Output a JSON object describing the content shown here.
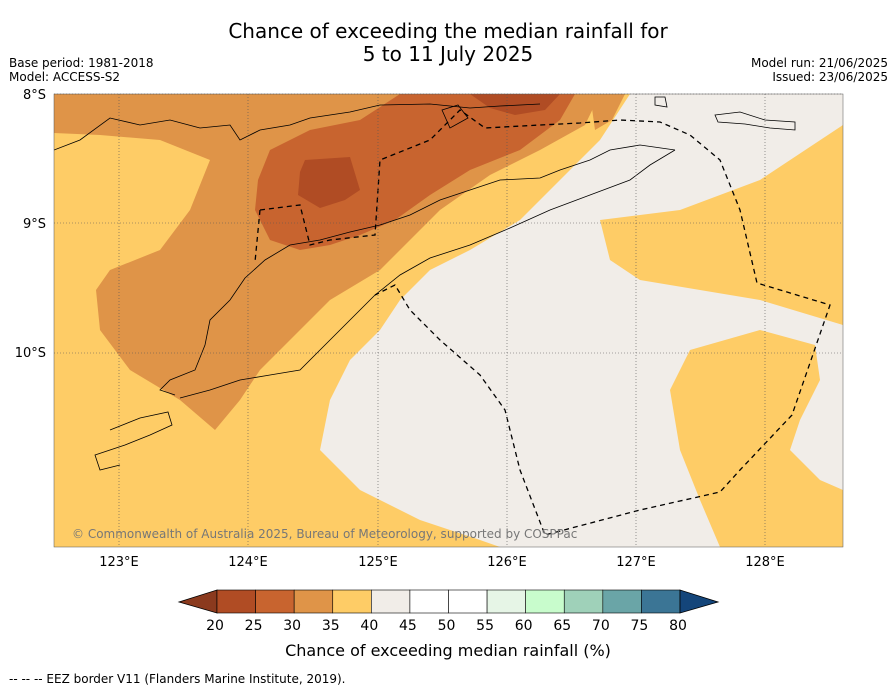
{
  "title": {
    "line1": "Chance of exceeding the median rainfall for",
    "line2": "5 to 11 July 2025"
  },
  "meta_left": {
    "base_period": "Base period: 1981-2018",
    "model": "Model: ACCESS-S2"
  },
  "meta_right": {
    "model_run": "Model run: 21/06/2025",
    "issued": "Issued: 23/06/2025"
  },
  "map": {
    "lat_labels": [
      "8°S",
      "9°S",
      "10°S"
    ],
    "lon_labels": [
      "123°E",
      "124°E",
      "125°E",
      "126°E",
      "127°E",
      "128°E"
    ],
    "copyright": "© Commonwealth of Australia 2025, Bureau of Meteorology, supported by COSPPac"
  },
  "legend": {
    "title": "Chance of exceeding median rainfall (%)",
    "ticks": [
      "20",
      "25",
      "30",
      "35",
      "40",
      "45",
      "50",
      "55",
      "60",
      "65",
      "70",
      "75",
      "80"
    ],
    "colors": [
      "#8b3a1e",
      "#b04c24",
      "#c8642f",
      "#df9448",
      "#fecc66",
      "#f1ede8",
      "#ffffff",
      "#ffffff",
      "#e6f5e6",
      "#c8fccc",
      "#9fd1b9",
      "#6aa5a7",
      "#3b7595",
      "#14457a"
    ]
  },
  "footer": "--  --  -- EEZ border V11 (Flanders Marine Institute, 2019)."
}
